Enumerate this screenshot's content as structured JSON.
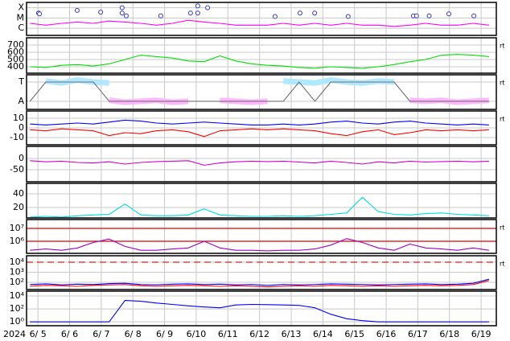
{
  "chart_data": [
    {
      "type": "line",
      "log": true,
      "grid": true,
      "x": [
        4.75,
        5.25,
        5.75,
        6.25,
        6.75,
        7.25,
        7.75,
        8.25,
        8.75,
        9.25,
        9.75,
        10.25,
        10.75,
        11.25,
        11.75,
        12.25,
        12.75,
        13.25,
        13.75,
        14.25,
        14.75,
        15.25,
        15.75,
        16.25,
        16.75,
        17.25,
        17.75,
        18.25,
        18.75,
        19.25
      ],
      "xlim": [
        4.64,
        19.48
      ],
      "xticks": [
        5,
        6,
        7,
        8,
        9,
        10,
        11,
        12,
        13,
        14,
        15,
        16,
        17,
        18,
        19
      ],
      "ylim": [
        2e-07,
        0.00033
      ],
      "yticks": [
        {
          "value": 0.0001,
          "label": "X"
        },
        {
          "value": 1e-05,
          "label": "M"
        },
        {
          "value": 1e-06,
          "label": "C"
        }
      ],
      "series": [
        {
          "type": "line",
          "color": "#ff00ff",
          "values": [
            3e-06,
            2e-06,
            3e-06,
            4e-06,
            3e-06,
            5e-06,
            4e-06,
            3e-06,
            2e-06,
            3e-06,
            6e-06,
            4e-06,
            3e-06,
            2e-06,
            2e-06,
            2e-06,
            3e-06,
            2e-06,
            3e-06,
            2e-06,
            3e-06,
            2e-06,
            2e-06,
            1.5e-06,
            2e-06,
            3e-06,
            2e-06,
            2e-06,
            3e-06,
            2e-06
          ]
        },
        {
          "type": "scatter",
          "color": "#3333cc",
          "x": [
            5.02,
            5.05,
            6.24,
            6.98,
            7.66,
            7.66,
            7.79,
            8.88,
            9.82,
            10.05,
            10.05,
            10.36,
            12.49,
            13.28,
            13.74,
            14.8,
            16.86,
            16.96,
            17.36,
            17.98,
            18.77
          ],
          "values": [
            3e-05,
            2.5e-05,
            5.5e-05,
            3.7e-05,
            0.0001,
            3e-05,
            1.6e-05,
            1.6e-05,
            3e-05,
            0.00015,
            3e-05,
            0.0001,
            1.4e-05,
            3e-05,
            3e-05,
            1.4e-05,
            1.6e-05,
            1.6e-05,
            1.6e-05,
            2.5e-05,
            1.6e-05
          ]
        }
      ]
    },
    {
      "type": "line",
      "grid": true,
      "side_label": "rt",
      "x": [
        4.75,
        5.25,
        5.75,
        6.25,
        6.75,
        7.25,
        7.75,
        8.25,
        8.75,
        9.25,
        9.75,
        10.25,
        10.75,
        11.25,
        11.75,
        12.25,
        12.75,
        13.25,
        13.75,
        14.25,
        14.75,
        15.25,
        15.75,
        16.25,
        16.75,
        17.25,
        17.75,
        18.25,
        18.75,
        19.25
      ],
      "xlim": [
        4.64,
        19.48
      ],
      "xticks": [
        5,
        6,
        7,
        8,
        9,
        10,
        11,
        12,
        13,
        14,
        15,
        16,
        17,
        18,
        19
      ],
      "ylim": [
        311,
        800
      ],
      "yticks": [
        400,
        500,
        600,
        700
      ],
      "series": [
        {
          "type": "line",
          "color": "#00e000",
          "values": [
            400,
            390,
            420,
            430,
            410,
            440,
            500,
            560,
            540,
            520,
            480,
            470,
            550,
            480,
            440,
            420,
            410,
            390,
            380,
            400,
            390,
            380,
            400,
            430,
            470,
            500,
            560,
            570,
            560,
            540
          ]
        }
      ]
    },
    {
      "type": "line",
      "grid": true,
      "side_label": "rt",
      "x": [
        4.75,
        5.25,
        5.75,
        6.25,
        6.75,
        7.25,
        7.75,
        8.25,
        8.75,
        9.25,
        9.75,
        10.25,
        10.75,
        11.25,
        11.75,
        12.25,
        12.75,
        13.25,
        13.75,
        14.25,
        14.75,
        15.25,
        15.75,
        16.25,
        16.75,
        17.25,
        17.75,
        18.25,
        18.75,
        19.25
      ],
      "xlim": [
        4.64,
        19.48
      ],
      "xticks": [
        5,
        6,
        7,
        8,
        9,
        10,
        11,
        12,
        13,
        14,
        15,
        16,
        17,
        18,
        19
      ],
      "ylim": [
        -0.42,
        1.375
      ],
      "yticks": [
        {
          "value": 1,
          "label": "T"
        },
        {
          "value": 0,
          "label": "A"
        }
      ],
      "series": [
        {
          "type": "band",
          "color": "#b0e8ff",
          "values": [
            null,
            1.05,
            0.95,
            1.1,
            1.0,
            0.95,
            null,
            null,
            null,
            null,
            null,
            1.0,
            null,
            null,
            null,
            null,
            1.05,
            1.0,
            0.95,
            1.1,
            1.0,
            0.95,
            1.05,
            1.0,
            null,
            null,
            null,
            null,
            null,
            null
          ]
        },
        {
          "type": "band",
          "color": "#ffb8ff",
          "values": [
            0.0,
            null,
            null,
            null,
            null,
            0.05,
            -0.05,
            0.0,
            0.05,
            -0.05,
            0.0,
            null,
            0.05,
            0.0,
            -0.05,
            0.0,
            null,
            null,
            null,
            null,
            null,
            null,
            null,
            null,
            0.05,
            0.0,
            0.05,
            -0.05,
            0.0,
            0.05
          ]
        },
        {
          "type": "line",
          "color": "#707070",
          "values": [
            0,
            1,
            1,
            1,
            1,
            0,
            0,
            0,
            0,
            0,
            0,
            0,
            0,
            0,
            0,
            0,
            0,
            1,
            0,
            1,
            1,
            1,
            1,
            1,
            0,
            0,
            0,
            0,
            0,
            0
          ]
        }
      ]
    },
    {
      "type": "line",
      "grid": true,
      "side_label": "rt",
      "x": [
        4.75,
        5.25,
        5.75,
        6.25,
        6.75,
        7.25,
        7.75,
        8.25,
        8.75,
        9.25,
        9.75,
        10.25,
        10.75,
        11.25,
        11.75,
        12.25,
        12.75,
        13.25,
        13.75,
        14.25,
        14.75,
        15.25,
        15.75,
        16.25,
        16.75,
        17.25,
        17.75,
        18.25,
        18.75,
        19.25
      ],
      "xlim": [
        4.64,
        19.48
      ],
      "xticks": [
        5,
        6,
        7,
        8,
        9,
        10,
        11,
        12,
        13,
        14,
        15,
        16,
        17,
        18,
        19
      ],
      "ylim": [
        -17.5,
        17.5
      ],
      "yticks": [
        10,
        0,
        -10
      ],
      "series": [
        {
          "type": "line",
          "color": "#0000ff",
          "values": [
            4,
            3,
            4,
            5,
            4,
            6,
            8,
            7,
            5,
            4,
            5,
            6,
            5,
            4,
            3,
            3,
            4,
            3,
            4,
            6,
            7,
            5,
            4,
            6,
            7,
            5,
            4,
            3,
            4,
            3
          ]
        },
        {
          "type": "line",
          "color": "#ff0000",
          "values": [
            -2,
            -3,
            -1,
            -2,
            -3,
            -8,
            -5,
            -6,
            -3,
            -2,
            -4,
            -9,
            -3,
            -2,
            -1,
            -2,
            -1,
            -2,
            -3,
            -6,
            -8,
            -4,
            -2,
            -7,
            -5,
            -2,
            -3,
            -2,
            -3,
            -2
          ]
        }
      ]
    },
    {
      "type": "line",
      "grid": true,
      "x": [
        4.75,
        5.25,
        5.75,
        6.25,
        6.75,
        7.25,
        7.75,
        8.25,
        8.75,
        9.25,
        9.75,
        10.25,
        10.75,
        11.25,
        11.75,
        12.25,
        12.75,
        13.25,
        13.75,
        14.25,
        14.75,
        15.25,
        15.75,
        16.25,
        16.75,
        17.25,
        17.75,
        18.25,
        18.75,
        19.25
      ],
      "xlim": [
        4.64,
        19.48
      ],
      "xticks": [
        5,
        6,
        7,
        8,
        9,
        10,
        11,
        12,
        13,
        14,
        15,
        16,
        17,
        18,
        19
      ],
      "ylim": [
        -103.6,
        53.6
      ],
      "yticks": [
        0,
        -50
      ],
      "series": [
        {
          "type": "line",
          "color": "#d000d0",
          "values": [
            -10,
            -15,
            -12,
            -18,
            -20,
            -15,
            -25,
            -18,
            -14,
            -12,
            -10,
            -30,
            -20,
            -15,
            -12,
            -14,
            -12,
            -16,
            -20,
            -12,
            -18,
            -25,
            -15,
            -20,
            -12,
            -16,
            -14,
            -12,
            -15,
            -12
          ]
        }
      ]
    },
    {
      "type": "line",
      "grid": true,
      "x": [
        4.75,
        5.25,
        5.75,
        6.25,
        6.75,
        7.25,
        7.75,
        8.25,
        8.75,
        9.25,
        9.75,
        10.25,
        10.75,
        11.25,
        11.75,
        12.25,
        12.75,
        13.25,
        13.75,
        14.25,
        14.75,
        15.25,
        15.75,
        16.25,
        16.75,
        17.25,
        17.75,
        18.25,
        18.75,
        19.25
      ],
      "xlim": [
        4.64,
        19.48
      ],
      "xticks": [
        5,
        6,
        7,
        8,
        9,
        10,
        11,
        12,
        13,
        14,
        15,
        16,
        17,
        18,
        19
      ],
      "ylim": [
        4.7,
        55.3
      ],
      "yticks": [
        40,
        20
      ],
      "series": [
        {
          "type": "line",
          "color": "#00dddd",
          "values": [
            6,
            7,
            6,
            8,
            9,
            10,
            25,
            9,
            8,
            8,
            9,
            18,
            9,
            8,
            7,
            7,
            8,
            7,
            8,
            10,
            12,
            35,
            14,
            10,
            9,
            11,
            12,
            10,
            9,
            8
          ]
        }
      ]
    },
    {
      "type": "line",
      "log": true,
      "grid": true,
      "side_label": "rt",
      "x": [
        4.75,
        5.25,
        5.75,
        6.25,
        6.75,
        7.25,
        7.75,
        8.25,
        8.75,
        9.25,
        9.75,
        10.25,
        10.75,
        11.25,
        11.75,
        12.25,
        12.75,
        13.25,
        13.75,
        14.25,
        14.75,
        15.25,
        15.75,
        16.25,
        16.75,
        17.25,
        17.75,
        18.25,
        18.75,
        19.25
      ],
      "xlim": [
        4.64,
        19.48
      ],
      "xticks": [
        5,
        6,
        7,
        8,
        9,
        10,
        11,
        12,
        13,
        14,
        15,
        16,
        17,
        18,
        19
      ],
      "ylim": [
        115000,
        49000000
      ],
      "yticks": [
        {
          "value": 10000000,
          "label": "10⁷"
        },
        {
          "value": 1000000,
          "label": "10⁶"
        }
      ],
      "hlines": [
        10000000,
        1000000
      ],
      "hline_color": "#dd0000",
      "hline_style": "solid",
      "series": [
        {
          "type": "line",
          "color": "#a000c0",
          "values": [
            200000,
            250000,
            200000,
            300000,
            800000,
            1500000,
            400000,
            200000,
            200000,
            250000,
            300000,
            1000000,
            300000,
            200000,
            200000,
            180000,
            200000,
            200000,
            250000,
            500000,
            1600000,
            800000,
            300000,
            200000,
            600000,
            300000,
            250000,
            200000,
            300000,
            200000
          ]
        }
      ]
    },
    {
      "type": "line",
      "log": true,
      "grid": true,
      "side_label": "rt",
      "x": [
        4.75,
        5.25,
        5.75,
        6.25,
        6.75,
        7.25,
        7.75,
        8.25,
        8.75,
        9.25,
        9.75,
        10.25,
        10.75,
        11.25,
        11.75,
        12.25,
        12.75,
        13.25,
        13.75,
        14.25,
        14.75,
        15.25,
        15.75,
        16.25,
        16.75,
        17.25,
        17.75,
        18.25,
        18.75,
        19.25
      ],
      "xlim": [
        4.64,
        19.48
      ],
      "xticks": [
        5,
        6,
        7,
        8,
        9,
        10,
        11,
        12,
        13,
        14,
        15,
        16,
        17,
        18,
        19
      ],
      "ylim": [
        19,
        44000
      ],
      "yticks": [
        {
          "value": 10000,
          "label": "10⁴"
        },
        {
          "value": 1000,
          "label": "10³"
        },
        {
          "value": 100,
          "label": "10²"
        }
      ],
      "hlines": [
        10000
      ],
      "hline_color": "#dd2222",
      "hline_style": "dashed",
      "series": [
        {
          "type": "line",
          "color": "#0000ff",
          "values": [
            60,
            70,
            55,
            65,
            60,
            75,
            80,
            60,
            55,
            65,
            70,
            60,
            65,
            55,
            60,
            50,
            60,
            55,
            60,
            70,
            65,
            60,
            55,
            60,
            65,
            70,
            60,
            65,
            80,
            200
          ]
        },
        {
          "type": "line",
          "color": "#ff0000",
          "values": [
            40,
            50,
            45,
            40,
            50,
            55,
            60,
            45,
            40,
            45,
            50,
            45,
            40,
            45,
            40,
            35,
            40,
            45,
            40,
            50,
            45,
            40,
            45,
            40,
            45,
            50,
            45,
            50,
            60,
            150
          ]
        }
      ]
    },
    {
      "type": "line",
      "log": true,
      "grid": true,
      "year": "2024",
      "x": [
        4.75,
        5.25,
        5.75,
        6.25,
        6.75,
        7.25,
        7.75,
        8.25,
        8.75,
        9.25,
        9.75,
        10.25,
        10.75,
        11.25,
        11.75,
        12.25,
        12.75,
        13.25,
        13.75,
        14.25,
        14.75,
        15.25,
        15.75,
        16.25,
        16.75,
        17.25,
        17.75,
        18.25,
        18.75,
        19.25
      ],
      "xlim": [
        4.64,
        19.48
      ],
      "xticks": [
        {
          "value": 5,
          "label": "6/ 5"
        },
        {
          "value": 6,
          "label": "6/ 6"
        },
        {
          "value": 7,
          "label": "6/ 7"
        },
        {
          "value": 8,
          "label": "6/ 8"
        },
        {
          "value": 9,
          "label": "6/ 9"
        },
        {
          "value": 10,
          "label": "6/10"
        },
        {
          "value": 11,
          "label": "6/11"
        },
        {
          "value": 12,
          "label": "6/12"
        },
        {
          "value": 13,
          "label": "6/13"
        },
        {
          "value": 14,
          "label": "6/14"
        },
        {
          "value": 15,
          "label": "6/15"
        },
        {
          "value": 16,
          "label": "6/16"
        },
        {
          "value": 17,
          "label": "6/17"
        },
        {
          "value": 18,
          "label": "6/18"
        },
        {
          "value": 19,
          "label": "6/19"
        }
      ],
      "ylim": [
        0.25,
        56000
      ],
      "yticks": [
        {
          "value": 10000,
          "label": "10⁴"
        },
        {
          "value": 100,
          "label": "10²"
        },
        {
          "value": 1,
          "label": "10⁰"
        }
      ],
      "series": [
        {
          "type": "line",
          "color": "#0000ff",
          "values": [
            1,
            1,
            1,
            1,
            1,
            1,
            2000,
            1500,
            800,
            500,
            300,
            200,
            150,
            400,
            500,
            450,
            400,
            350,
            150,
            15,
            3,
            1.5,
            1,
            1,
            1,
            1,
            1,
            1,
            1,
            1
          ]
        }
      ]
    }
  ]
}
